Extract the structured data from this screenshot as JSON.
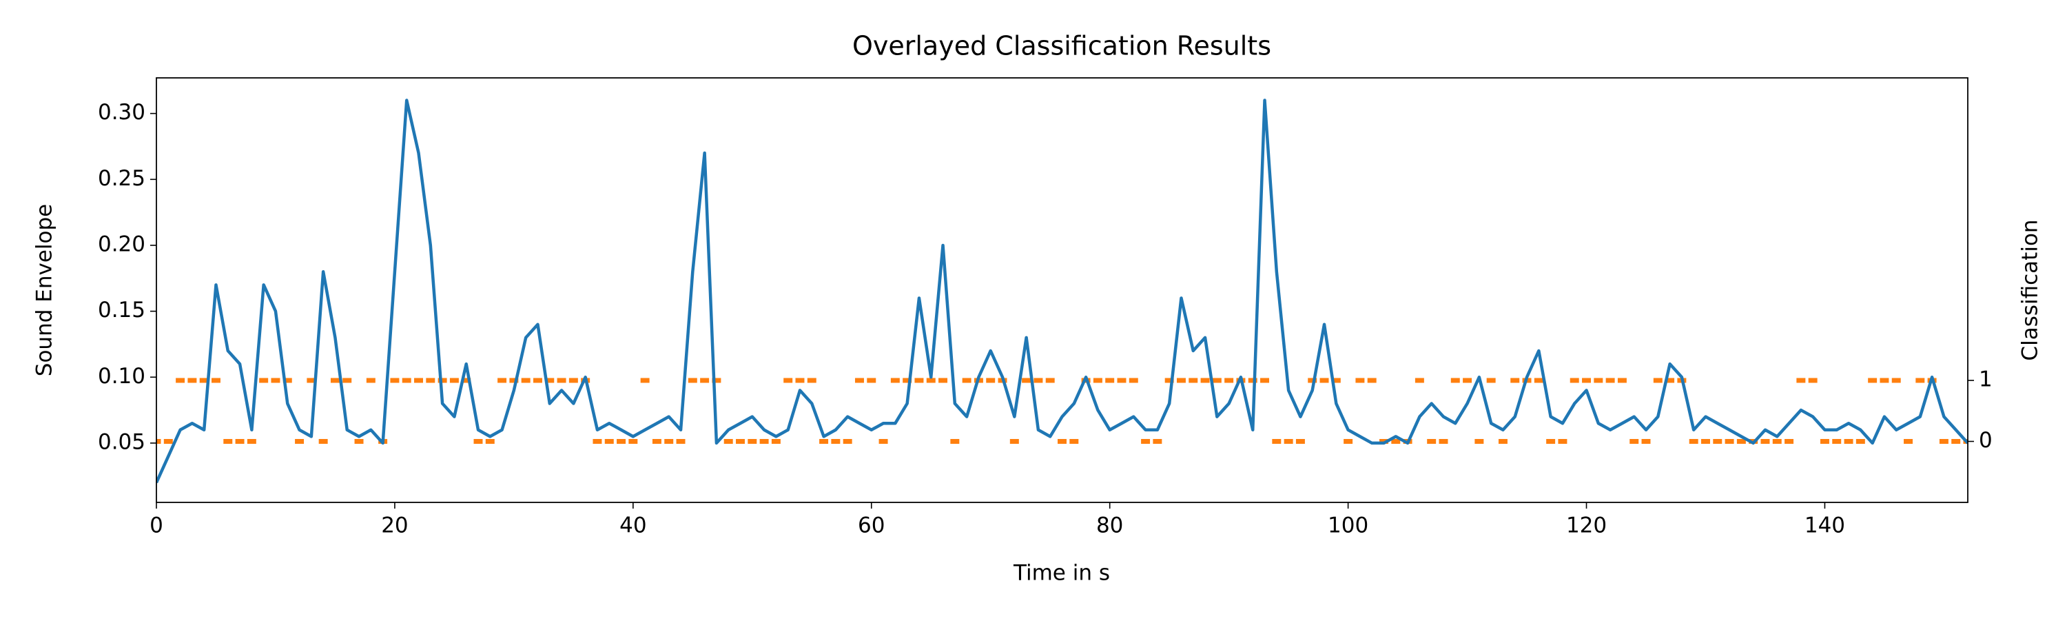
{
  "chart_data": {
    "type": "line",
    "title": "Overlayed Classification Results",
    "xlabel": "Time in s",
    "ylabel": "Sound Envelope",
    "y2label": "Classification",
    "x": [
      0,
      1,
      2,
      3,
      4,
      5,
      6,
      7,
      8,
      9,
      10,
      11,
      12,
      13,
      14,
      15,
      16,
      17,
      18,
      19,
      20,
      21,
      22,
      23,
      24,
      25,
      26,
      27,
      28,
      29,
      30,
      31,
      32,
      33,
      34,
      35,
      36,
      37,
      38,
      39,
      40,
      41,
      42,
      43,
      44,
      45,
      46,
      47,
      48,
      49,
      50,
      51,
      52,
      53,
      54,
      55,
      56,
      57,
      58,
      59,
      60,
      61,
      62,
      63,
      64,
      65,
      66,
      67,
      68,
      69,
      70,
      71,
      72,
      73,
      74,
      75,
      76,
      77,
      78,
      79,
      80,
      81,
      82,
      83,
      84,
      85,
      86,
      87,
      88,
      89,
      90,
      91,
      92,
      93,
      94,
      95,
      96,
      97,
      98,
      99,
      100,
      101,
      102,
      103,
      104,
      105,
      106,
      107,
      108,
      109,
      110,
      111,
      112,
      113,
      114,
      115,
      116,
      117,
      118,
      119,
      120,
      121,
      122,
      123,
      124,
      125,
      126,
      127,
      128,
      129,
      130,
      131,
      132,
      133,
      134,
      135,
      136,
      137,
      138,
      139,
      140,
      141,
      142,
      143,
      144,
      145,
      146,
      147,
      148,
      149,
      150,
      151,
      152
    ],
    "series": [
      {
        "type": "line",
        "color": "#1f77b4",
        "values": [
          0.02,
          0.04,
          0.06,
          0.065,
          0.06,
          0.17,
          0.12,
          0.11,
          0.06,
          0.17,
          0.15,
          0.08,
          0.06,
          0.055,
          0.18,
          0.13,
          0.06,
          0.055,
          0.06,
          0.05,
          0.18,
          0.31,
          0.27,
          0.2,
          0.08,
          0.07,
          0.11,
          0.06,
          0.055,
          0.06,
          0.09,
          0.13,
          0.14,
          0.08,
          0.09,
          0.08,
          0.1,
          0.06,
          0.065,
          0.06,
          0.055,
          0.06,
          0.065,
          0.07,
          0.06,
          0.18,
          0.27,
          0.05,
          0.06,
          0.065,
          0.07,
          0.06,
          0.055,
          0.06,
          0.09,
          0.08,
          0.055,
          0.06,
          0.07,
          0.065,
          0.06,
          0.065,
          0.065,
          0.08,
          0.16,
          0.1,
          0.2,
          0.08,
          0.07,
          0.1,
          0.12,
          0.1,
          0.07,
          0.13,
          0.06,
          0.055,
          0.07,
          0.08,
          0.1,
          0.075,
          0.06,
          0.065,
          0.07,
          0.06,
          0.06,
          0.08,
          0.16,
          0.12,
          0.13,
          0.07,
          0.08,
          0.1,
          0.06,
          0.31,
          0.18,
          0.09,
          0.07,
          0.09,
          0.14,
          0.08,
          0.06,
          0.055,
          0.05,
          0.05,
          0.055,
          0.05,
          0.07,
          0.08,
          0.07,
          0.065,
          0.08,
          0.1,
          0.065,
          0.06,
          0.07,
          0.1,
          0.12,
          0.07,
          0.065,
          0.08,
          0.09,
          0.065,
          0.06,
          0.065,
          0.07,
          0.06,
          0.07,
          0.11,
          0.1,
          0.06,
          0.07,
          0.065,
          0.06,
          0.055,
          0.05,
          0.06,
          0.055,
          0.065,
          0.075,
          0.07,
          0.06,
          0.06,
          0.065,
          0.06,
          0.05,
          0.07,
          0.06,
          0.065,
          0.07,
          0.1,
          0.07,
          0.06,
          0.05
        ]
      },
      {
        "type": "scatter",
        "axis": "y2",
        "color": "#ff7f0e",
        "values": [
          0,
          0,
          1,
          1,
          1,
          1,
          0,
          0,
          0,
          1,
          1,
          1,
          0,
          1,
          0,
          1,
          1,
          0,
          1,
          0,
          1,
          1,
          1,
          1,
          1,
          1,
          1,
          0,
          0,
          1,
          1,
          1,
          1,
          1,
          1,
          1,
          1,
          0,
          0,
          0,
          0,
          1,
          0,
          0,
          0,
          1,
          1,
          1,
          0,
          0,
          0,
          0,
          0,
          1,
          1,
          1,
          0,
          0,
          0,
          1,
          1,
          0,
          1,
          1,
          1,
          1,
          1,
          0,
          1,
          1,
          1,
          1,
          0,
          1,
          1,
          1,
          0,
          0,
          1,
          1,
          1,
          1,
          1,
          0,
          0,
          1,
          1,
          1,
          1,
          1,
          1,
          1,
          1,
          1,
          0,
          0,
          0,
          1,
          1,
          1,
          0,
          1,
          1,
          0,
          0,
          0,
          1,
          0,
          0,
          1,
          1,
          0,
          1,
          0,
          1,
          1,
          1,
          0,
          0,
          1,
          1,
          1,
          1,
          1,
          0,
          0,
          1,
          1,
          1,
          0,
          0,
          0,
          0,
          0,
          0,
          0,
          0,
          0,
          1,
          1,
          0,
          0,
          0,
          0,
          1,
          1,
          1,
          0,
          1,
          1,
          0,
          0,
          0
        ]
      }
    ],
    "xlim": [
      0,
      152
    ],
    "xticks": [
      0,
      20,
      40,
      60,
      80,
      100,
      120,
      140
    ],
    "ylim": [
      0.005,
      0.327
    ],
    "yticks": [
      0.05,
      {
        "value": 0.1,
        "label": "0.10"
      },
      0.15,
      {
        "value": 0.2,
        "label": "0.20"
      },
      0.25,
      {
        "value": 0.3,
        "label": "0.30"
      }
    ],
    "y2lim": [
      -1.0,
      5.96
    ],
    "y2ticks": [
      0,
      1
    ],
    "grid": false
  }
}
